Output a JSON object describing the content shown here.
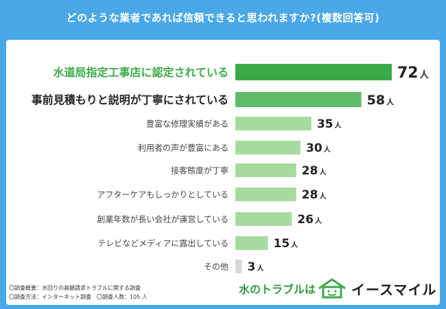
{
  "header": {
    "title": "どのような業者であれば信頼できると思われますか?(複数回答可)"
  },
  "colors": {
    "background": "#4aa8e6",
    "top": "#3aaa48",
    "second": "#5fbd6a",
    "rest": "#a6dba0",
    "other": "#d9d9d9"
  },
  "chart_data": {
    "type": "bar",
    "orientation": "horizontal",
    "title": "どのような業者であれば信頼できると思われますか?(複数回答可)",
    "unit": "人",
    "categories": [
      "水道局指定工事店に認定されている",
      "事前見積もりと説明が丁寧にされている",
      "豊富な修理実績がある",
      "利用者の声が豊富にある",
      "接客態度が丁寧",
      "アフターケアもしっかりとしている",
      "創業年数が長い会社が運営している",
      "テレビなどメディアに露出している",
      "その他"
    ],
    "values": [
      72,
      58,
      35,
      30,
      28,
      28,
      26,
      15,
      3
    ],
    "xlim": [
      0,
      72
    ]
  },
  "footnotes": [
    "〇調査概要：水回りの高額請求トラブルに関する調査",
    "〇調査方法：インターネット調査　〇調査人数：105 人"
  ],
  "brand": {
    "tagline": "水のトラブルは",
    "name": "イースマイル",
    "logo_icon": "house-smile-icon"
  }
}
